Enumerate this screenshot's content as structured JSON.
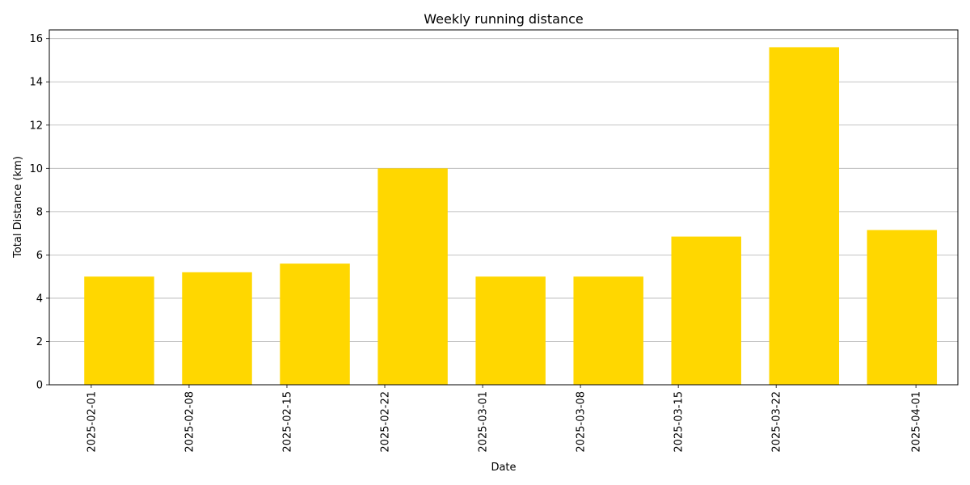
{
  "chart_data": {
    "type": "bar",
    "title": "Weekly running distance",
    "xlabel": "Date",
    "ylabel": "Total Distance (km)",
    "x": [
      "2025-02-03",
      "2025-02-10",
      "2025-02-17",
      "2025-02-24",
      "2025-03-03",
      "2025-03-10",
      "2025-03-17",
      "2025-03-24",
      "2025-03-31"
    ],
    "values": [
      5.0,
      5.2,
      5.6,
      10.0,
      5.0,
      5.0,
      6.85,
      15.6,
      7.15
    ],
    "x_tick_labels": [
      "2025-02-01",
      "2025-02-08",
      "2025-02-15",
      "2025-02-22",
      "2025-03-01",
      "2025-03-08",
      "2025-03-15",
      "2025-03-22",
      "2025-04-01"
    ],
    "y_ticks": [
      0,
      2,
      4,
      6,
      8,
      10,
      12,
      14,
      16
    ],
    "xlim": [
      "2025-01-29",
      "2025-04-04"
    ],
    "ylim": [
      0,
      16.4
    ],
    "bar_width_days": 5,
    "bar_color": "#FFD700",
    "grid": "y-major",
    "legend": "none"
  }
}
